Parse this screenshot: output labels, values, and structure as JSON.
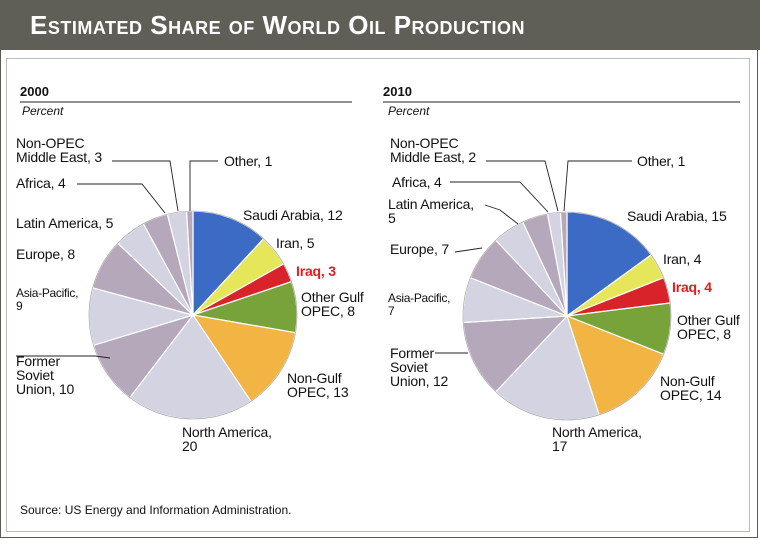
{
  "title": "Estimated Share of World Oil Production",
  "source": "Source: US Energy and Information Administration.",
  "colors": {
    "header_bg": "#5f5f57",
    "highlight_text": "#e8191f"
  },
  "chart_data": [
    {
      "type": "pie",
      "year": "2000",
      "unit": "Percent",
      "slices": [
        {
          "label": "Saudi Arabia",
          "value": 12,
          "color": "#3b6bc4"
        },
        {
          "label": "Iran",
          "value": 5,
          "color": "#e6e65a"
        },
        {
          "label": "Iraq",
          "value": 3,
          "color": "#d8232a",
          "highlight": true
        },
        {
          "label": "Other Gulf OPEC",
          "value": 8,
          "color": "#77a33a"
        },
        {
          "label": "Non-Gulf OPEC",
          "value": 13,
          "color": "#f2b443"
        },
        {
          "label": "North America",
          "value": 20,
          "color": "#d3d3e1"
        },
        {
          "label": "Former Soviet Union",
          "value": 10,
          "color": "#b6a8bb"
        },
        {
          "label": "Asia-Pacific",
          "value": 9,
          "color": "#d3d3e1"
        },
        {
          "label": "Europe",
          "value": 8,
          "color": "#b6a8bb"
        },
        {
          "label": "Latin America",
          "value": 5,
          "color": "#d3d3e1"
        },
        {
          "label": "Africa",
          "value": 4,
          "color": "#b6a8bb"
        },
        {
          "label": "Non-OPEC Middle East",
          "value": 3,
          "color": "#d3d3e1"
        },
        {
          "label": "Other",
          "value": 1,
          "color": "#b6a8bb"
        }
      ],
      "labels": [
        {
          "lines": [
            "Non-OPEC",
            "Middle East, 3"
          ]
        },
        {
          "lines": [
            "Other, 1"
          ]
        },
        {
          "lines": [
            "Africa, 4"
          ]
        },
        {
          "lines": [
            "Saudi Arabia, 12"
          ]
        },
        {
          "lines": [
            "Latin America, 5"
          ]
        },
        {
          "lines": [
            "Iran, 5"
          ]
        },
        {
          "lines": [
            "Europe, 8"
          ]
        },
        {
          "lines": [
            "Iraq, 3"
          ],
          "highlight": true
        },
        {
          "lines": [
            "Asia-Pacific,",
            "9"
          ]
        },
        {
          "lines": [
            "Other Gulf",
            "OPEC, 8"
          ]
        },
        {
          "lines": [
            "Former",
            "Soviet",
            "Union, 10"
          ]
        },
        {
          "lines": [
            "Non-Gulf",
            "OPEC, 13"
          ]
        },
        {
          "lines": [
            "North America,",
            "20"
          ]
        }
      ]
    },
    {
      "type": "pie",
      "year": "2010",
      "unit": "Percent",
      "slices": [
        {
          "label": "Saudi Arabia",
          "value": 15,
          "color": "#3b6bc4"
        },
        {
          "label": "Iran",
          "value": 4,
          "color": "#e6e65a"
        },
        {
          "label": "Iraq",
          "value": 4,
          "color": "#d8232a",
          "highlight": true
        },
        {
          "label": "Other Gulf OPEC",
          "value": 8,
          "color": "#77a33a"
        },
        {
          "label": "Non-Gulf OPEC",
          "value": 14,
          "color": "#f2b443"
        },
        {
          "label": "North America",
          "value": 17,
          "color": "#d3d3e1"
        },
        {
          "label": "Former Soviet Union",
          "value": 12,
          "color": "#b6a8bb"
        },
        {
          "label": "Asia-Pacific",
          "value": 7,
          "color": "#d3d3e1"
        },
        {
          "label": "Europe",
          "value": 7,
          "color": "#b6a8bb"
        },
        {
          "label": "Latin America",
          "value": 5,
          "color": "#d3d3e1"
        },
        {
          "label": "Africa",
          "value": 4,
          "color": "#b6a8bb"
        },
        {
          "label": "Non-OPEC Middle East",
          "value": 2,
          "color": "#d3d3e1"
        },
        {
          "label": "Other",
          "value": 1,
          "color": "#b6a8bb"
        }
      ],
      "labels": [
        {
          "lines": [
            "Non-OPEC",
            "Middle East, 2"
          ]
        },
        {
          "lines": [
            "Other, 1"
          ]
        },
        {
          "lines": [
            "Africa, 4"
          ]
        },
        {
          "lines": [
            "Latin America,",
            "5"
          ]
        },
        {
          "lines": [
            "Saudi Arabia, 15"
          ]
        },
        {
          "lines": [
            "Europe, 7"
          ]
        },
        {
          "lines": [
            "Iran, 4"
          ]
        },
        {
          "lines": [
            "Iraq, 4"
          ],
          "highlight": true
        },
        {
          "lines": [
            "Asia-Pacific,",
            "7"
          ]
        },
        {
          "lines": [
            "Other Gulf",
            "OPEC, 8"
          ]
        },
        {
          "lines": [
            "Former",
            "Soviet",
            "Union, 12"
          ]
        },
        {
          "lines": [
            "Non-Gulf",
            "OPEC, 14"
          ]
        },
        {
          "lines": [
            "North America,",
            "17"
          ]
        }
      ]
    }
  ]
}
